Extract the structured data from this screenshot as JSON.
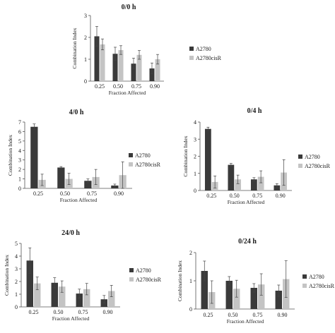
{
  "colors": {
    "A2780": "#3a3a3a",
    "A2780cisR": "#c4c4c4"
  },
  "chart_data": [
    {
      "type": "bar",
      "title": "0/0 h",
      "xlabel": "Fraction Affected",
      "ylabel": "Combination Index",
      "categories": [
        "0.25",
        "0.50",
        "0.75",
        "0.90"
      ],
      "ylim": [
        0,
        3
      ],
      "yticks": [
        "0",
        "1",
        "2",
        "3"
      ],
      "legend_position": "right",
      "series": [
        {
          "name": "A2780",
          "values": [
            2.05,
            1.25,
            0.8,
            0.58
          ],
          "errors": [
            0.45,
            0.3,
            0.25,
            0.25
          ]
        },
        {
          "name": "A2780cisR",
          "values": [
            1.68,
            1.42,
            1.2,
            1.0
          ],
          "errors": [
            0.25,
            0.2,
            0.2,
            0.22
          ]
        }
      ]
    },
    {
      "type": "bar",
      "title": "4/0 h",
      "xlabel": "Fraction Affected",
      "ylabel": "Combination Index",
      "categories": [
        "0.25",
        "0.50",
        "0.75",
        "0.90"
      ],
      "ylim": [
        0,
        7
      ],
      "yticks": [
        "0",
        "1",
        "2",
        "3",
        "4",
        "5",
        "6",
        "7"
      ],
      "legend_position": "right",
      "series": [
        {
          "name": "A2780",
          "values": [
            6.5,
            2.2,
            0.8,
            0.3
          ],
          "errors": [
            0.3,
            0.1,
            0.2,
            0.15
          ]
        },
        {
          "name": "A2780cisR",
          "values": [
            0.9,
            1.0,
            1.2,
            1.4
          ],
          "errors": [
            0.6,
            0.6,
            0.8,
            1.4
          ]
        }
      ]
    },
    {
      "type": "bar",
      "title": "0/4 h",
      "xlabel": "Fraction Affected",
      "ylabel": "Combination Index",
      "categories": [
        "0.25",
        "0.50",
        "0.75",
        "0.90"
      ],
      "ylim": [
        0,
        4
      ],
      "yticks": [
        "0",
        "1",
        "2",
        "3",
        "4"
      ],
      "legend_position": "right",
      "series": [
        {
          "name": "A2780",
          "values": [
            3.6,
            1.5,
            0.65,
            0.3
          ],
          "errors": [
            0.1,
            0.08,
            0.1,
            0.1
          ]
        },
        {
          "name": "A2780cisR",
          "values": [
            0.5,
            0.65,
            0.8,
            1.05
          ],
          "errors": [
            0.35,
            0.25,
            0.35,
            0.75
          ]
        }
      ]
    },
    {
      "type": "bar",
      "title": "24/0 h",
      "xlabel": "Fraction Affected",
      "ylabel": "Combination Index",
      "categories": [
        "0.25",
        "0.50",
        "0.75",
        "0.90"
      ],
      "ylim": [
        0,
        5
      ],
      "yticks": [
        "0",
        "1",
        "2",
        "3",
        "4",
        "5"
      ],
      "legend_position": "right",
      "series": [
        {
          "name": "A2780",
          "values": [
            3.65,
            1.9,
            1.05,
            0.6
          ],
          "errors": [
            1.0,
            0.4,
            0.35,
            0.3
          ]
        },
        {
          "name": "A2780cisR",
          "values": [
            1.85,
            1.6,
            1.4,
            1.25
          ],
          "errors": [
            0.5,
            0.45,
            0.45,
            0.45
          ]
        }
      ]
    },
    {
      "type": "bar",
      "title": "0/24 h",
      "xlabel": "Fraction Affected",
      "ylabel": "Combination Index",
      "categories": [
        "0.25",
        "0.50",
        "0.75",
        "0.90"
      ],
      "ylim": [
        0,
        2
      ],
      "yticks": [
        "0",
        "1",
        "2"
      ],
      "legend_position": "right",
      "series": [
        {
          "name": "A2780",
          "values": [
            1.35,
            1.0,
            0.75,
            0.65
          ],
          "errors": [
            0.35,
            0.15,
            0.15,
            0.2
          ]
        },
        {
          "name": "A2780cisR",
          "values": [
            0.6,
            0.72,
            0.87,
            1.06
          ],
          "errors": [
            0.4,
            0.3,
            0.38,
            0.65
          ]
        }
      ]
    }
  ]
}
